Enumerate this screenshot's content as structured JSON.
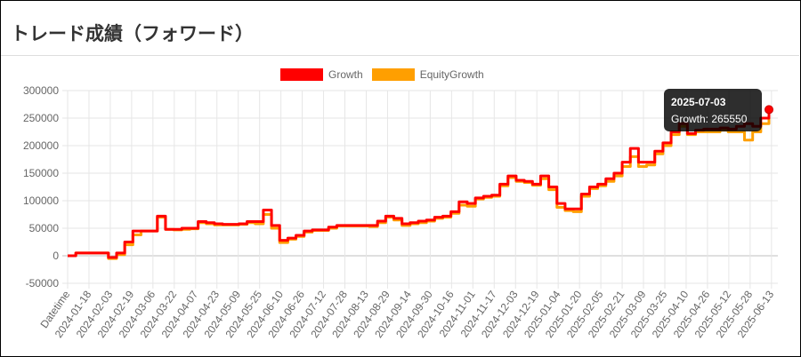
{
  "page": {
    "title": "トレード成績（フォワード）"
  },
  "chart_data": {
    "type": "line",
    "grid": true,
    "legend_position": "top",
    "ylim": [
      -50000,
      300000
    ],
    "y_ticks": [
      300000,
      250000,
      200000,
      150000,
      100000,
      50000,
      0,
      -50000
    ],
    "x_tick_labels": [
      "Datetime",
      "2024-01-18",
      "2024-02-03",
      "2024-02-19",
      "2024-03-06",
      "2024-03-22",
      "2024-04-07",
      "2024-04-23",
      "2024-05-09",
      "2024-05-25",
      "2024-06-10",
      "2024-06-26",
      "2024-07-12",
      "2024-07-28",
      "2024-08-13",
      "2024-08-29",
      "2024-09-14",
      "2024-09-30",
      "2024-10-16",
      "2024-11-01",
      "2024-11-17",
      "2024-12-03",
      "2024-12-19",
      "2025-01-04",
      "2025-01-20",
      "2025-02-05",
      "2025-02-21",
      "2025-03-09",
      "2025-03-25",
      "2025-04-10",
      "2025-04-26",
      "2025-05-12",
      "2025-05-28",
      "2025-06-13"
    ],
    "series": [
      {
        "name": "Growth",
        "color": "#ff0000",
        "points": [
          [
            0,
            0
          ],
          [
            1,
            5000
          ],
          [
            2,
            5000
          ],
          [
            3,
            5000
          ],
          [
            4,
            5000
          ],
          [
            5,
            -3000
          ],
          [
            6,
            5000
          ],
          [
            7,
            25000
          ],
          [
            8,
            45000
          ],
          [
            9,
            45000
          ],
          [
            10,
            45000
          ],
          [
            11,
            72000
          ],
          [
            12,
            48000
          ],
          [
            13,
            48000
          ],
          [
            14,
            50000
          ],
          [
            15,
            50000
          ],
          [
            16,
            62000
          ],
          [
            17,
            60000
          ],
          [
            18,
            58000
          ],
          [
            19,
            57000
          ],
          [
            20,
            57000
          ],
          [
            21,
            58000
          ],
          [
            22,
            62000
          ],
          [
            23,
            62000
          ],
          [
            24,
            83000
          ],
          [
            25,
            55000
          ],
          [
            26,
            28000
          ],
          [
            27,
            32000
          ],
          [
            28,
            37000
          ],
          [
            29,
            45000
          ],
          [
            30,
            47000
          ],
          [
            31,
            47000
          ],
          [
            32,
            52000
          ],
          [
            33,
            55000
          ],
          [
            34,
            55000
          ],
          [
            35,
            55000
          ],
          [
            36,
            55000
          ],
          [
            37,
            55000
          ],
          [
            38,
            63000
          ],
          [
            39,
            72000
          ],
          [
            40,
            68000
          ],
          [
            41,
            58000
          ],
          [
            42,
            60000
          ],
          [
            43,
            63000
          ],
          [
            44,
            65000
          ],
          [
            45,
            70000
          ],
          [
            46,
            72000
          ],
          [
            47,
            80000
          ],
          [
            48,
            98000
          ],
          [
            49,
            95000
          ],
          [
            50,
            105000
          ],
          [
            51,
            108000
          ],
          [
            52,
            110000
          ],
          [
            53,
            130000
          ],
          [
            54,
            145000
          ],
          [
            55,
            137000
          ],
          [
            56,
            135000
          ],
          [
            57,
            130000
          ],
          [
            58,
            145000
          ],
          [
            59,
            125000
          ],
          [
            60,
            95000
          ],
          [
            61,
            85000
          ],
          [
            62,
            85000
          ],
          [
            63,
            112000
          ],
          [
            64,
            125000
          ],
          [
            65,
            130000
          ],
          [
            66,
            140000
          ],
          [
            67,
            150000
          ],
          [
            68,
            170000
          ],
          [
            69,
            195000
          ],
          [
            70,
            170000
          ],
          [
            71,
            170000
          ],
          [
            72,
            190000
          ],
          [
            73,
            205000
          ],
          [
            74,
            225000
          ],
          [
            75,
            240000
          ],
          [
            76,
            222000
          ],
          [
            77,
            228000
          ],
          [
            78,
            230000
          ],
          [
            79,
            230000
          ],
          [
            80,
            232000
          ],
          [
            81,
            230000
          ],
          [
            82,
            235000
          ],
          [
            83,
            240000
          ],
          [
            84,
            235000
          ],
          [
            85,
            250000
          ],
          [
            86,
            265550
          ]
        ]
      },
      {
        "name": "EquityGrowth",
        "color": "#ff9f00",
        "points": [
          [
            0,
            0
          ],
          [
            1,
            5000
          ],
          [
            2,
            5000
          ],
          [
            3,
            5000
          ],
          [
            4,
            5000
          ],
          [
            5,
            -5000
          ],
          [
            6,
            2000
          ],
          [
            7,
            20000
          ],
          [
            8,
            38000
          ],
          [
            9,
            45000
          ],
          [
            10,
            45000
          ],
          [
            11,
            70000
          ],
          [
            12,
            48000
          ],
          [
            13,
            47000
          ],
          [
            14,
            48000
          ],
          [
            15,
            49000
          ],
          [
            16,
            60000
          ],
          [
            17,
            58000
          ],
          [
            18,
            56000
          ],
          [
            19,
            56000
          ],
          [
            20,
            56000
          ],
          [
            21,
            57000
          ],
          [
            22,
            60000
          ],
          [
            23,
            58000
          ],
          [
            24,
            75000
          ],
          [
            25,
            50000
          ],
          [
            26,
            24000
          ],
          [
            27,
            30000
          ],
          [
            28,
            35000
          ],
          [
            29,
            43000
          ],
          [
            30,
            46000
          ],
          [
            31,
            46000
          ],
          [
            32,
            50000
          ],
          [
            33,
            54000
          ],
          [
            34,
            54000
          ],
          [
            35,
            54000
          ],
          [
            36,
            54000
          ],
          [
            37,
            53000
          ],
          [
            38,
            60000
          ],
          [
            39,
            70000
          ],
          [
            40,
            65000
          ],
          [
            41,
            55000
          ],
          [
            42,
            58000
          ],
          [
            43,
            60000
          ],
          [
            44,
            63000
          ],
          [
            45,
            68000
          ],
          [
            46,
            70000
          ],
          [
            47,
            77000
          ],
          [
            48,
            92000
          ],
          [
            49,
            90000
          ],
          [
            50,
            103000
          ],
          [
            51,
            106000
          ],
          [
            52,
            108000
          ],
          [
            53,
            127000
          ],
          [
            54,
            142000
          ],
          [
            55,
            135000
          ],
          [
            56,
            133000
          ],
          [
            57,
            128000
          ],
          [
            58,
            140000
          ],
          [
            59,
            120000
          ],
          [
            60,
            88000
          ],
          [
            61,
            82000
          ],
          [
            62,
            80000
          ],
          [
            63,
            108000
          ],
          [
            64,
            122000
          ],
          [
            65,
            127000
          ],
          [
            66,
            135000
          ],
          [
            67,
            145000
          ],
          [
            68,
            162000
          ],
          [
            69,
            180000
          ],
          [
            70,
            162000
          ],
          [
            71,
            165000
          ],
          [
            72,
            185000
          ],
          [
            73,
            200000
          ],
          [
            74,
            220000
          ],
          [
            75,
            235000
          ],
          [
            76,
            220000
          ],
          [
            77,
            225000
          ],
          [
            78,
            225000
          ],
          [
            79,
            225000
          ],
          [
            80,
            228000
          ],
          [
            81,
            225000
          ],
          [
            82,
            225000
          ],
          [
            83,
            210000
          ],
          [
            84,
            225000
          ],
          [
            85,
            240000
          ],
          [
            86,
            265550
          ]
        ]
      }
    ],
    "tooltip": {
      "date": "2025-07-03",
      "label": "Growth: 265550"
    }
  }
}
